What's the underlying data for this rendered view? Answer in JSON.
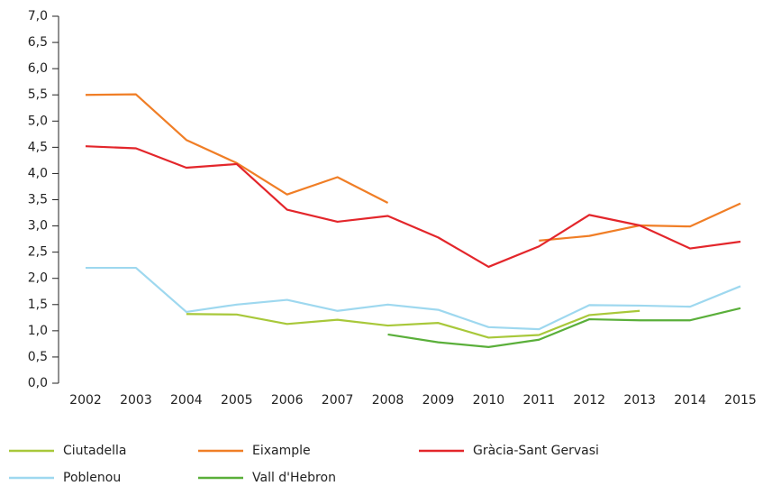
{
  "chart_data": {
    "type": "line",
    "categories": [
      "2002",
      "2003",
      "2004",
      "2005",
      "2006",
      "2007",
      "2008",
      "2009",
      "2010",
      "2011",
      "2012",
      "2013",
      "2014",
      "2015"
    ],
    "series": [
      {
        "name": "Ciutadella",
        "color": "#a8c83a",
        "values": [
          null,
          null,
          1.32,
          1.31,
          1.13,
          1.21,
          1.1,
          1.15,
          0.87,
          0.92,
          1.3,
          1.38,
          null,
          null
        ]
      },
      {
        "name": "Eixample",
        "color": "#f07e26",
        "values": [
          5.5,
          5.51,
          4.64,
          4.2,
          3.6,
          3.93,
          3.44,
          null,
          null,
          2.72,
          2.81,
          3.01,
          2.99,
          3.43
        ]
      },
      {
        "name": "Gràcia-Sant Gervasi",
        "color": "#e3262b",
        "values": [
          4.52,
          4.48,
          4.11,
          4.18,
          3.31,
          3.08,
          3.19,
          2.78,
          2.22,
          2.61,
          3.21,
          3.01,
          2.57,
          2.7
        ]
      },
      {
        "name": "Poblenou",
        "color": "#9ed8ef",
        "values": [
          2.2,
          2.2,
          1.36,
          1.5,
          1.59,
          1.38,
          1.5,
          1.4,
          1.07,
          1.03,
          1.49,
          1.48,
          1.46,
          1.85
        ]
      },
      {
        "name": "Vall d'Hebron",
        "color": "#5aaf3a",
        "values": [
          null,
          null,
          null,
          null,
          null,
          null,
          0.93,
          0.78,
          0.69,
          0.83,
          1.22,
          1.2,
          1.2,
          1.43
        ]
      }
    ],
    "ylim": [
      0,
      7
    ],
    "yticks": [
      {
        "value": 0,
        "label": "0,0"
      },
      {
        "value": 0.5,
        "label": "0,5"
      },
      {
        "value": 1,
        "label": "1,0"
      },
      {
        "value": 1.5,
        "label": "1,5"
      },
      {
        "value": 2,
        "label": "2,0"
      },
      {
        "value": 2.5,
        "label": "2,5"
      },
      {
        "value": 3,
        "label": "3,0"
      },
      {
        "value": 3.5,
        "label": "3,5"
      },
      {
        "value": 4,
        "label": "4,0"
      },
      {
        "value": 4.5,
        "label": "4,5"
      },
      {
        "value": 5,
        "label": "5,0"
      },
      {
        "value": 5.5,
        "label": "5,5"
      },
      {
        "value": 6,
        "label": "6,0"
      },
      {
        "value": 6.5,
        "label": "6,5"
      },
      {
        "value": 7,
        "label": "7,0"
      }
    ],
    "grid": false
  }
}
